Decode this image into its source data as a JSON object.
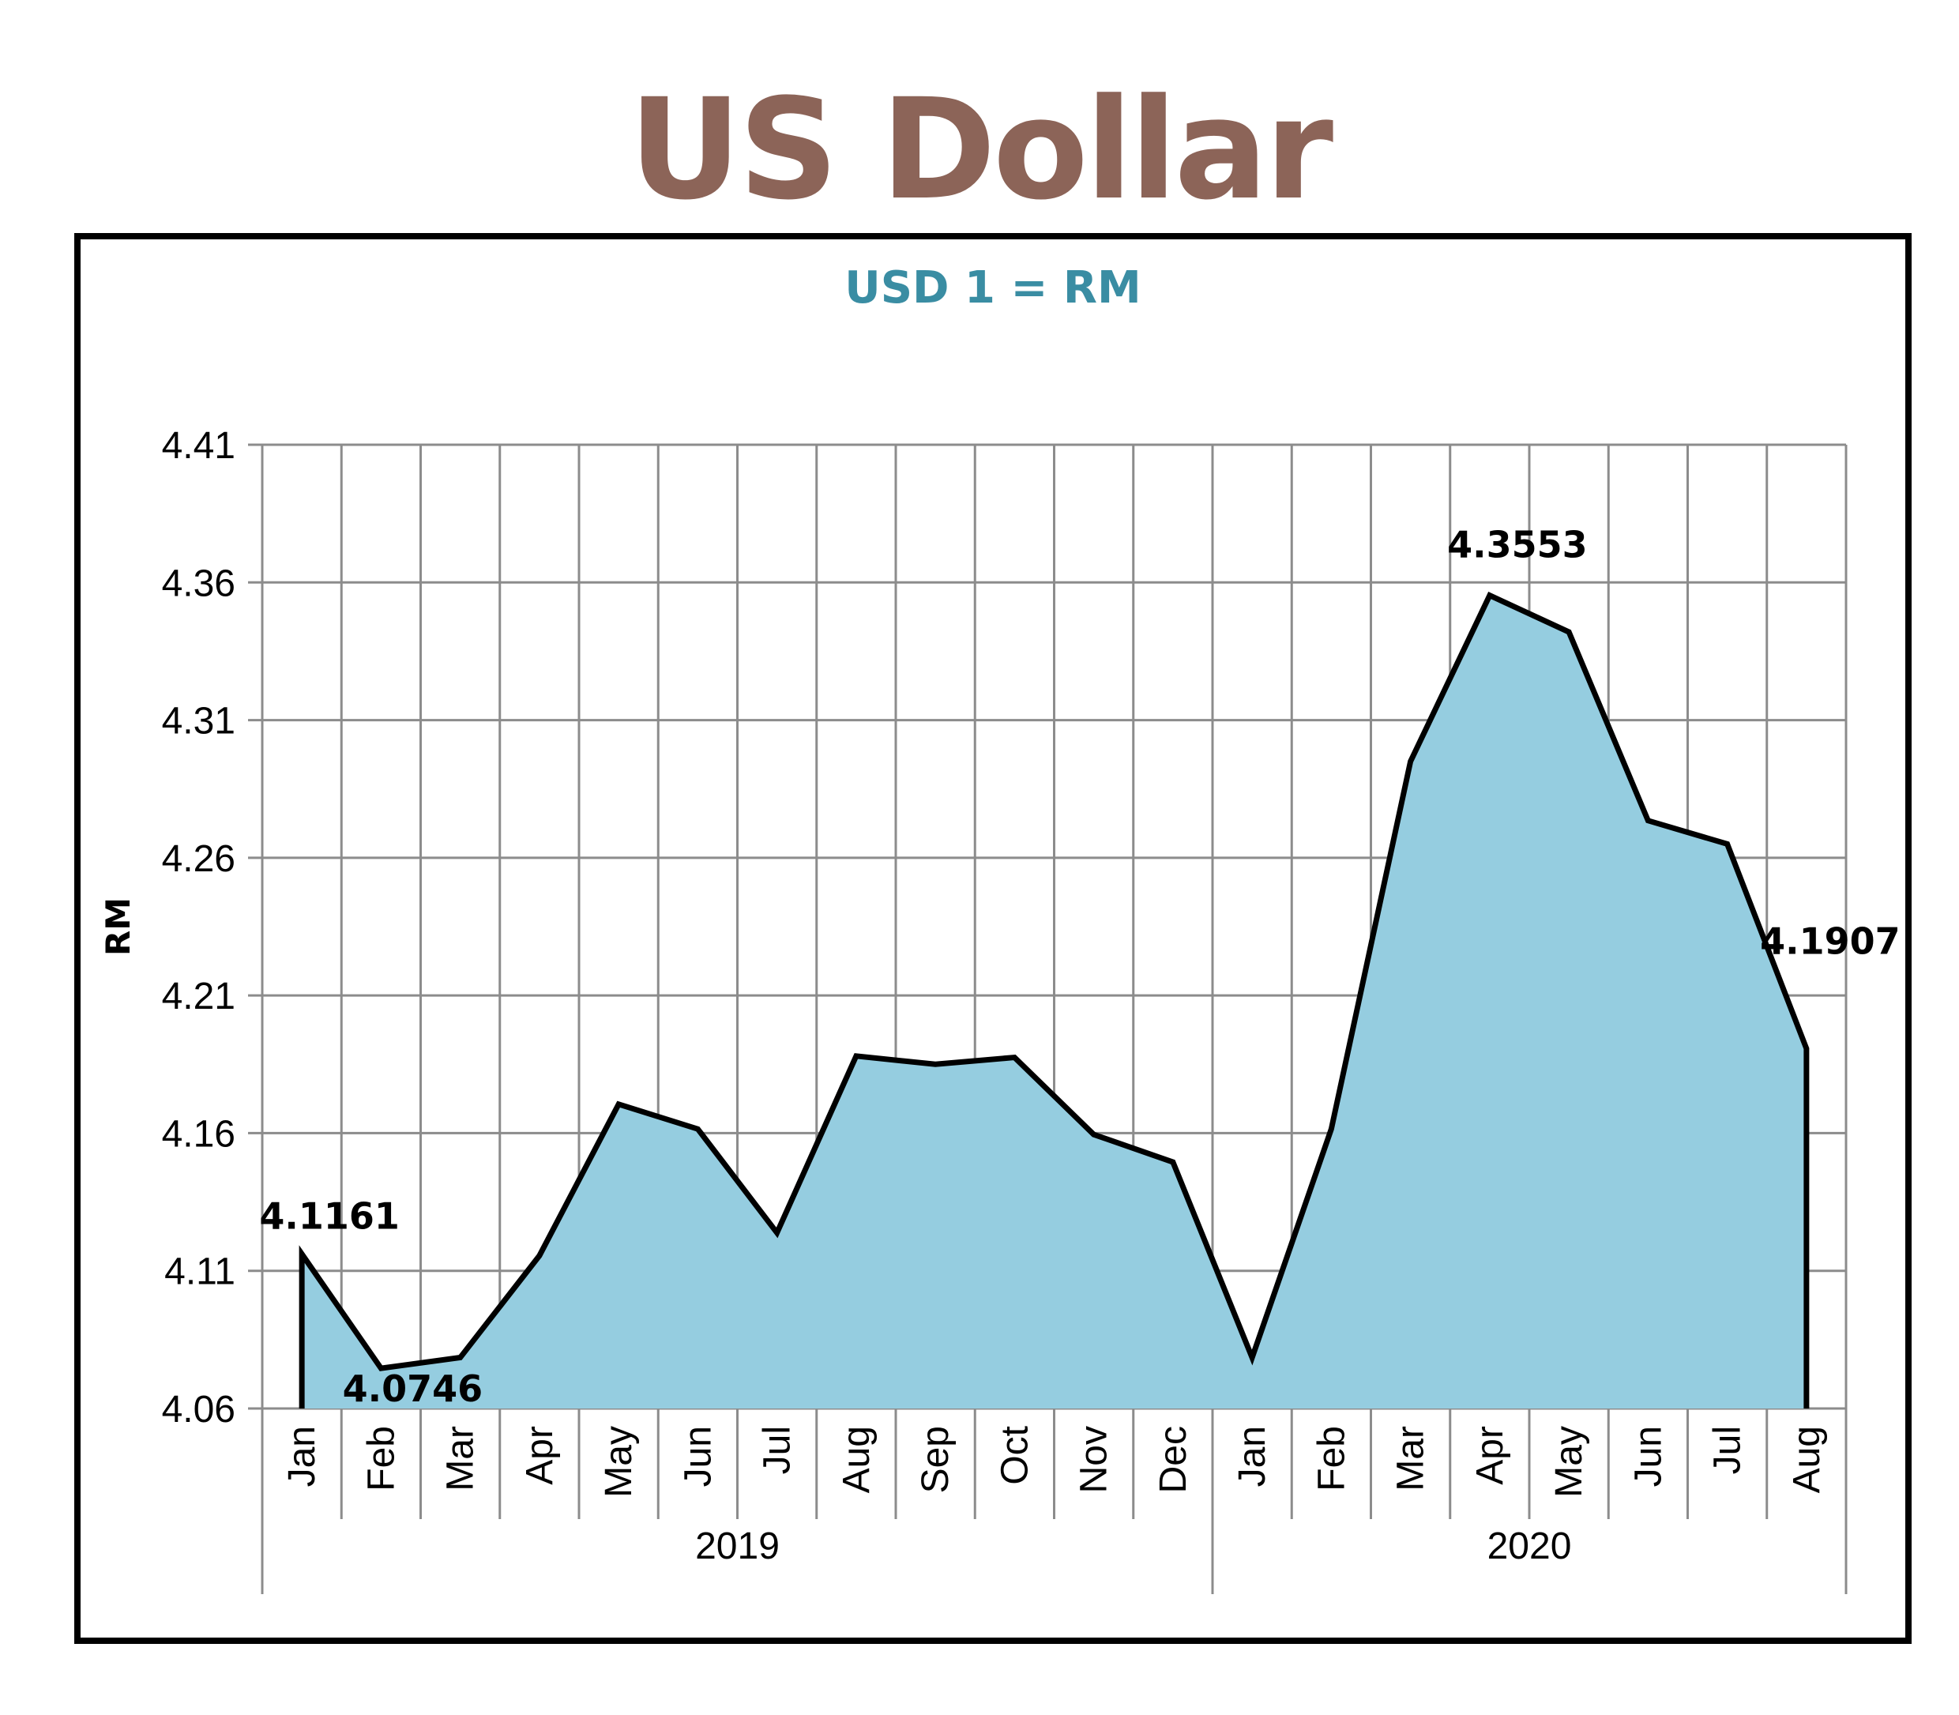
{
  "page": {
    "title": "US Dollar"
  },
  "chart_data": {
    "type": "area",
    "subtitle": "USD 1 = RM",
    "ylabel": "RM",
    "ylim": [
      4.06,
      4.41
    ],
    "yticks": [
      "4.41",
      "4.36",
      "4.31",
      "4.26",
      "4.21",
      "4.16",
      "4.11",
      "4.06"
    ],
    "grid": true,
    "years": [
      {
        "label": "2019",
        "months": [
          "Jan",
          "Feb",
          "Mar",
          "Apr",
          "May",
          "Jun",
          "Jul",
          "Aug",
          "Sep",
          "Oct",
          "Nov",
          "Dec"
        ]
      },
      {
        "label": "2020",
        "months": [
          "Jan",
          "Feb",
          "Mar",
          "Apr",
          "May",
          "Jun",
          "Jul",
          "Aug"
        ]
      }
    ],
    "values": [
      4.1161,
      4.0746,
      4.0785,
      4.1155,
      4.1705,
      4.1615,
      4.1238,
      4.188,
      4.185,
      4.1875,
      4.1595,
      4.1495,
      4.0785,
      4.1615,
      4.295,
      4.3553,
      4.342,
      4.2735,
      4.265,
      4.1907
    ],
    "data_labels": [
      {
        "index": 0,
        "text": "4.1161"
      },
      {
        "index": 1,
        "text": "4.0746"
      },
      {
        "index": 15,
        "text": "4.3553"
      },
      {
        "index": 19,
        "text": "4.1907"
      }
    ],
    "colors": {
      "fill": "#95cde0",
      "line": "#000000",
      "grid": "#8c8c8c",
      "title": "#8c6458",
      "subtitle": "#3a8da3"
    }
  }
}
